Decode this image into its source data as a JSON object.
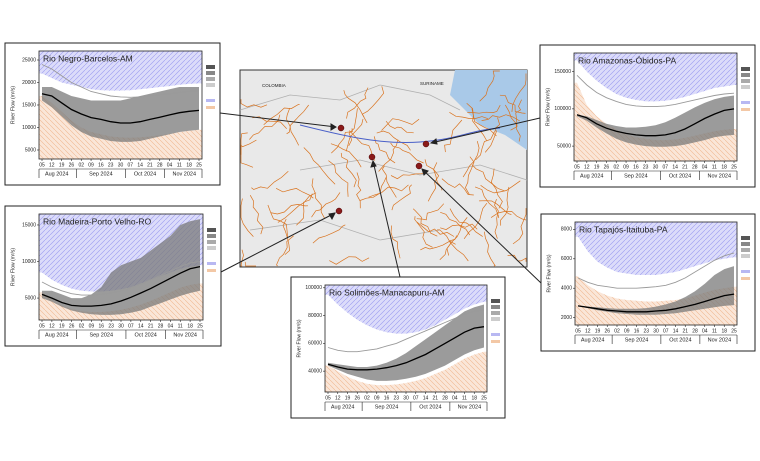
{
  "chart_data": [
    {
      "type": "line",
      "title": "Rio Negro-Barcelos-AM",
      "y_label": "River Flow (m³/s)",
      "categories": [
        "05",
        "12",
        "19",
        "26",
        "02",
        "09",
        "16",
        "23",
        "30",
        "07",
        "14",
        "21",
        "28",
        "04",
        "11",
        "18",
        "25"
      ],
      "months": [
        "Aug 2024",
        "Sep 2024",
        "Oct 2024",
        "Nov 2024"
      ],
      "ylim": [
        3000,
        27000
      ],
      "yticks": [
        5000,
        10000,
        15000,
        20000,
        25000
      ],
      "series": [
        {
          "style": "hatch-above",
          "color": "#9a9af0",
          "values": [
            22000,
            21000,
            20000,
            19500,
            19000,
            18500,
            18300,
            18200,
            18200,
            18300,
            18500,
            18700,
            19000,
            19200,
            19500,
            19700,
            19800
          ]
        },
        {
          "style": "hatch-below",
          "color": "#f0b890",
          "values": [
            17000,
            15500,
            13500,
            11500,
            10000,
            9000,
            8500,
            8000,
            7800,
            7700,
            7800,
            8000,
            8300,
            8600,
            9000,
            9300,
            9500
          ]
        },
        {
          "style": "band",
          "color": "#7a7a7a",
          "values": [
            19000,
            19000,
            18000,
            17000,
            16500,
            16000,
            16000,
            16000,
            16000,
            16500,
            17000,
            17500,
            18000,
            18500,
            19000,
            19000,
            19000
          ],
          "low": [
            16000,
            14500,
            12500,
            10500,
            9000,
            8000,
            7500,
            7000,
            6800,
            6800,
            7000,
            7500,
            8000,
            8500,
            9000,
            9300,
            9500
          ]
        },
        {
          "style": "line",
          "color": "#9a9a9a",
          "values": [
            24000,
            23000,
            21500,
            20000,
            19000,
            18000,
            17500,
            17000,
            16800,
            16700,
            16800,
            17000,
            17300,
            17500,
            17800,
            18000,
            18200
          ]
        },
        {
          "style": "line",
          "color": "#000000",
          "values": [
            17500,
            17000,
            15500,
            14000,
            13000,
            12200,
            11800,
            11300,
            11000,
            11000,
            11300,
            11800,
            12300,
            12800,
            13300,
            13600,
            13800
          ]
        }
      ]
    },
    {
      "type": "line",
      "title": "Rio Amazonas-Óbidos-PA",
      "y_label": "River Flow (m³/s)",
      "categories": [
        "05",
        "12",
        "19",
        "26",
        "02",
        "09",
        "16",
        "23",
        "30",
        "07",
        "14",
        "21",
        "28",
        "04",
        "11",
        "18",
        "25"
      ],
      "months": [
        "Aug 2024",
        "Sep 2024",
        "Oct 2024",
        "Nov 2024"
      ],
      "ylim": [
        30000,
        175000
      ],
      "yticks": [
        50000,
        100000,
        150000
      ],
      "series": [
        {
          "style": "hatch-above",
          "color": "#9a9af0",
          "values": [
            165000,
            150000,
            138000,
            128000,
            120000,
            115000,
            112000,
            110000,
            110000,
            111000,
            113000,
            116000,
            120000,
            124000,
            128000,
            130000,
            132000
          ]
        },
        {
          "style": "hatch-below",
          "color": "#f0b890",
          "values": [
            135000,
            105000,
            90000,
            80000,
            72000,
            66000,
            62000,
            60000,
            58000,
            58000,
            59000,
            61000,
            64000,
            67000,
            70000,
            72000,
            73000
          ]
        },
        {
          "style": "band",
          "color": "#7a7a7a",
          "values": [
            92000,
            90000,
            85000,
            80000,
            77000,
            75000,
            75000,
            76000,
            78000,
            82000,
            88000,
            95000,
            102000,
            108000,
            113000,
            116000,
            118000
          ],
          "low": [
            90000,
            84000,
            75000,
            67000,
            60000,
            55000,
            52000,
            50000,
            49000,
            49000,
            50000,
            52000,
            55000,
            58000,
            62000,
            64000,
            65000
          ]
        },
        {
          "style": "line",
          "color": "#9a9a9a",
          "values": [
            145000,
            132000,
            122000,
            115000,
            110000,
            106000,
            104000,
            103000,
            103000,
            104000,
            106000,
            109000,
            112000,
            115000,
            118000,
            120000,
            121000
          ]
        },
        {
          "style": "line",
          "color": "#000000",
          "values": [
            92000,
            88000,
            80000,
            74000,
            70000,
            67000,
            65000,
            64000,
            64000,
            65000,
            68000,
            73000,
            80000,
            87000,
            93000,
            98000,
            100000
          ]
        }
      ]
    },
    {
      "type": "line",
      "title": "Rio Madeira-Porto Velho-RO",
      "y_label": "River Flow (m³/s)",
      "categories": [
        "05",
        "12",
        "19",
        "26",
        "02",
        "09",
        "16",
        "23",
        "30",
        "07",
        "14",
        "21",
        "28",
        "04",
        "11",
        "18",
        "25"
      ],
      "months": [
        "Aug 2024",
        "Sep 2024",
        "Oct 2024",
        "Nov 2024"
      ],
      "ylim": [
        2000,
        16500
      ],
      "yticks": [
        5000,
        10000,
        15000
      ],
      "series": [
        {
          "style": "hatch-above",
          "color": "#9a9af0",
          "values": [
            8500,
            7500,
            6800,
            6300,
            6000,
            5900,
            5900,
            6000,
            6200,
            6500,
            7000,
            7500,
            8000,
            8500,
            9000,
            9300,
            9500
          ]
        },
        {
          "style": "hatch-below",
          "color": "#f0b890",
          "values": [
            5800,
            4800,
            4000,
            3500,
            3200,
            3100,
            3100,
            3200,
            3400,
            3700,
            4100,
            4600,
            5200,
            5800,
            6400,
            6800,
            7000
          ]
        },
        {
          "style": "band",
          "color": "#7a7a7a",
          "values": [
            6000,
            6000,
            5500,
            5000,
            5000,
            5500,
            6500,
            8500,
            9500,
            10000,
            10500,
            11500,
            12500,
            13500,
            15000,
            15500,
            15800
          ],
          "low": [
            5000,
            4500,
            3800,
            3300,
            3000,
            2800,
            2700,
            2700,
            2800,
            3000,
            3300,
            3800,
            4300,
            4800,
            5300,
            5700,
            6000
          ]
        },
        {
          "style": "line",
          "color": "#9a9a9a",
          "values": [
            7200,
            6500,
            6000,
            5600,
            5400,
            5400,
            5500,
            5700,
            6000,
            6400,
            6900,
            7500,
            8100,
            8700,
            9300,
            9800,
            10000
          ]
        },
        {
          "style": "line",
          "color": "#000000",
          "values": [
            5500,
            5000,
            4400,
            4000,
            3900,
            3900,
            4000,
            4200,
            4600,
            5100,
            5700,
            6300,
            7000,
            7700,
            8400,
            9000,
            9300
          ]
        }
      ]
    },
    {
      "type": "line",
      "title": "Rio Solimões-Manacapuru-AM",
      "y_label": "River Flow (m³/s)",
      "categories": [
        "05",
        "12",
        "19",
        "26",
        "02",
        "09",
        "16",
        "23",
        "30",
        "07",
        "14",
        "21",
        "28",
        "04",
        "11",
        "18",
        "25"
      ],
      "months": [
        "Aug 2024",
        "Sep 2024",
        "Oct 2024",
        "Nov 2024"
      ],
      "ylim": [
        25000,
        102000
      ],
      "yticks": [
        40000,
        60000,
        80000,
        100000
      ],
      "series": [
        {
          "style": "hatch-above",
          "color": "#9a9af0",
          "values": [
            95000,
            88000,
            82000,
            77000,
            73000,
            70000,
            68000,
            67000,
            67000,
            68000,
            70000,
            73000,
            77000,
            81000,
            85000,
            88000,
            90000
          ]
        },
        {
          "style": "hatch-below",
          "color": "#f0b890",
          "values": [
            44000,
            40000,
            36000,
            33000,
            31000,
            30000,
            30000,
            30500,
            31500,
            33000,
            35000,
            38000,
            41000,
            45000,
            49000,
            52000,
            54000
          ]
        },
        {
          "style": "band",
          "color": "#7a7a7a",
          "values": [
            46000,
            45000,
            44000,
            43000,
            43000,
            44000,
            46000,
            49000,
            53000,
            58000,
            63000,
            68000,
            73000,
            78000,
            83000,
            86000,
            88000
          ],
          "low": [
            44000,
            41000,
            38000,
            36000,
            34000,
            33000,
            33000,
            33500,
            34500,
            36000,
            38000,
            41000,
            44000,
            48000,
            52000,
            55000,
            57000
          ]
        },
        {
          "style": "line",
          "color": "#9a9a9a",
          "values": [
            57000,
            55000,
            54000,
            54000,
            55000,
            56000,
            58000,
            60000,
            63000,
            66000,
            69000,
            72000,
            75000,
            78000,
            81000,
            83000,
            84000
          ]
        },
        {
          "style": "line",
          "color": "#000000",
          "values": [
            45000,
            43000,
            41500,
            41000,
            41000,
            41500,
            42500,
            44000,
            46000,
            49000,
            52000,
            56000,
            60000,
            64000,
            68000,
            71000,
            72000
          ]
        }
      ]
    },
    {
      "type": "line",
      "title": "Rio Tapajós-Itaituba-PA",
      "y_label": "River Flow (m³/s)",
      "categories": [
        "05",
        "12",
        "19",
        "26",
        "02",
        "09",
        "16",
        "23",
        "30",
        "07",
        "14",
        "21",
        "28",
        "04",
        "11",
        "18",
        "25"
      ],
      "months": [
        "Aug 2024",
        "Sep 2024",
        "Oct 2024",
        "Nov 2024"
      ],
      "ylim": [
        1500,
        8500
      ],
      "yticks": [
        2000,
        4000,
        6000,
        8000
      ],
      "series": [
        {
          "style": "hatch-above",
          "color": "#9a9af0",
          "values": [
            7500,
            6500,
            5800,
            5400,
            5100,
            5000,
            4900,
            4900,
            4900,
            5000,
            5100,
            5300,
            5500,
            5700,
            5900,
            6000,
            6100
          ]
        },
        {
          "style": "hatch-below",
          "color": "#f0b890",
          "values": [
            4800,
            4200,
            3800,
            3500,
            3300,
            3200,
            3150,
            3100,
            3100,
            3150,
            3200,
            3300,
            3500,
            3700,
            3900,
            4000,
            4100
          ]
        },
        {
          "style": "band",
          "color": "#7a7a7a",
          "values": [
            2800,
            2750,
            2700,
            2650,
            2600,
            2600,
            2600,
            2650,
            2750,
            2900,
            3100,
            3400,
            3800,
            4300,
            4900,
            5300,
            5500
          ],
          "low": [
            2800,
            2650,
            2500,
            2400,
            2300,
            2250,
            2200,
            2200,
            2200,
            2250,
            2300,
            2400,
            2500,
            2600,
            2700,
            2800,
            2850
          ]
        },
        {
          "style": "line",
          "color": "#9a9a9a",
          "values": [
            4700,
            4400,
            4200,
            4100,
            4000,
            4000,
            4000,
            4050,
            4100,
            4200,
            4400,
            4700,
            5100,
            5500,
            5900,
            6200,
            6400
          ]
        },
        {
          "style": "line",
          "color": "#000000",
          "values": [
            2800,
            2700,
            2600,
            2500,
            2450,
            2400,
            2400,
            2400,
            2450,
            2500,
            2600,
            2750,
            2900,
            3100,
            3300,
            3500,
            3600
          ]
        }
      ]
    }
  ],
  "map_labels": [
    "COLOMBIA",
    "SURINAME"
  ]
}
